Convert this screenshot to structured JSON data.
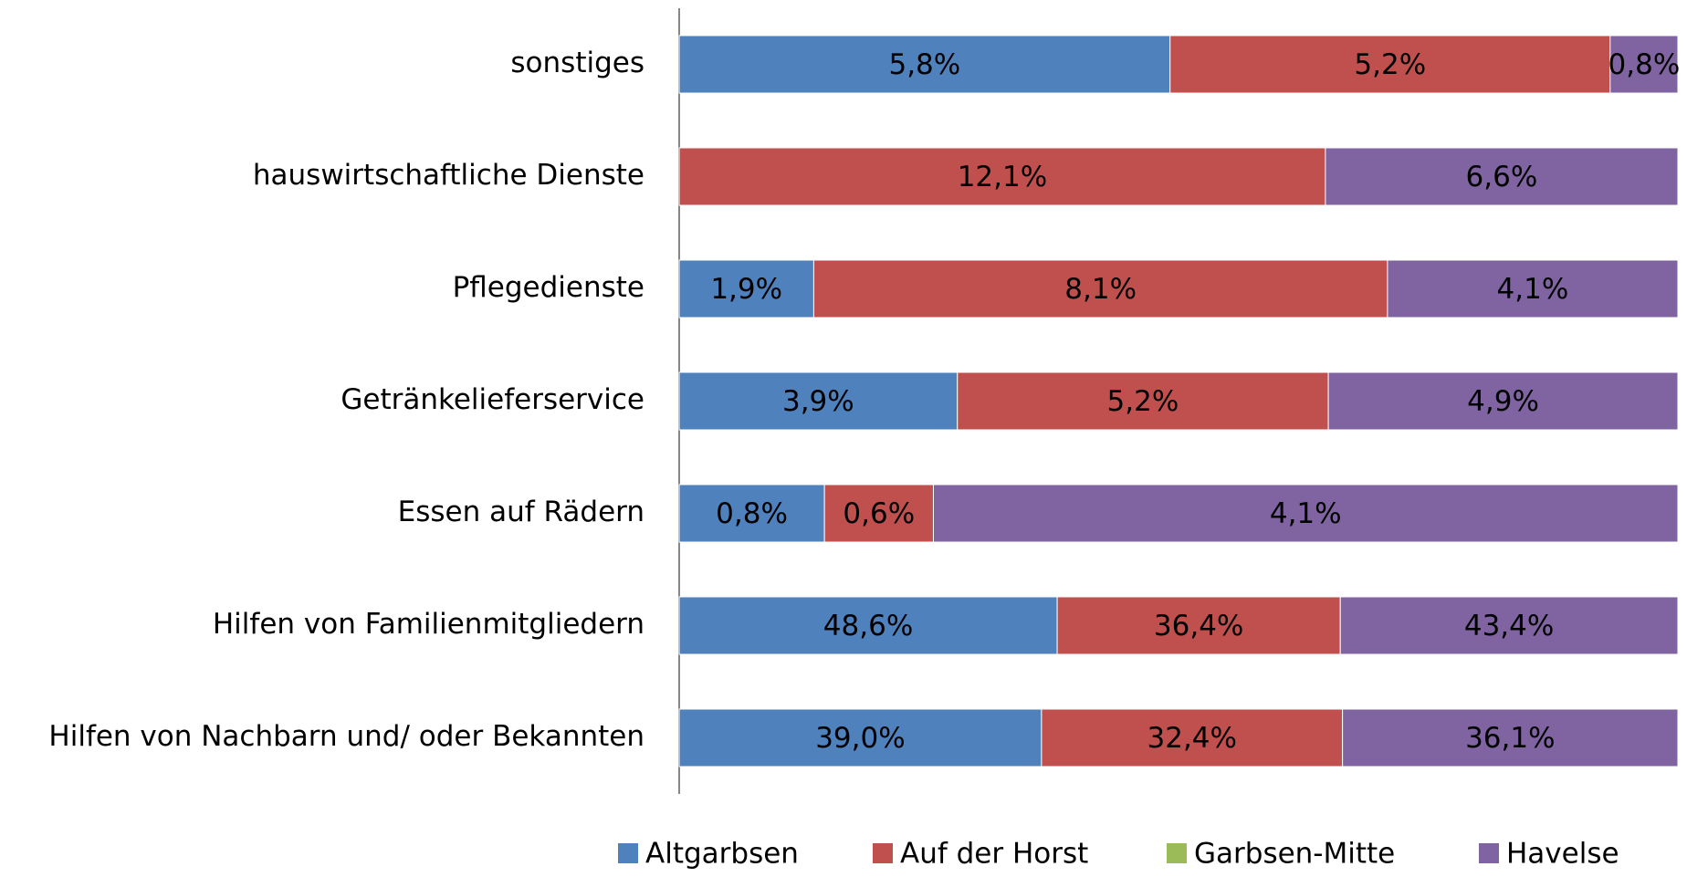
{
  "chart_data": {
    "type": "bar",
    "orientation": "horizontal",
    "stacking": "percent",
    "categories": [
      "sonstiges",
      "hauswirtschaftliche Dienste",
      "Pflegedienste",
      "Getränkelieferservice",
      "Essen auf Rädern",
      "Hilfen von Familienmitgliedern",
      "Hilfen von Nachbarn und/ oder Bekannten"
    ],
    "series": [
      {
        "name": "Altgarbsen",
        "color": "#4f81bd",
        "values": [
          5.8,
          null,
          1.9,
          3.9,
          0.8,
          48.6,
          39.0
        ],
        "value_labels": [
          "5,8%",
          null,
          "1,9%",
          "3,9%",
          "0,8%",
          "48,6%",
          "39,0%"
        ]
      },
      {
        "name": "Auf der Horst",
        "color": "#c0504d",
        "values": [
          5.2,
          12.1,
          8.1,
          5.2,
          0.6,
          36.4,
          32.4
        ],
        "value_labels": [
          "5,2%",
          "12,1%",
          "8,1%",
          "5,2%",
          "0,6%",
          "36,4%",
          "32,4%"
        ]
      },
      {
        "name": "Garbsen-Mitte",
        "color": "#9bbb59",
        "values": [
          null,
          null,
          null,
          null,
          null,
          null,
          null
        ],
        "value_labels": [
          null,
          null,
          null,
          null,
          null,
          null,
          null
        ]
      },
      {
        "name": "Havelse",
        "color": "#8064a2",
        "values": [
          0.8,
          6.6,
          4.1,
          4.9,
          4.1,
          43.4,
          36.1
        ],
        "value_labels": [
          "0,8%",
          "6,6%",
          "4,1%",
          "4,9%",
          "4,1%",
          "43,4%",
          "36,1%"
        ]
      }
    ],
    "legend": "bottom"
  }
}
